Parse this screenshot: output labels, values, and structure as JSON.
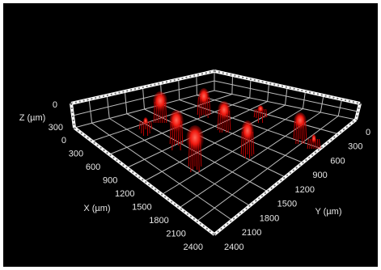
{
  "z_axis": {
    "label": "Z (µm)",
    "ticks": [
      "0",
      "300"
    ]
  },
  "x_axis": {
    "label": "X (µm)",
    "ticks": [
      "0",
      "300",
      "600",
      "900",
      "1200",
      "1500",
      "1800",
      "2100",
      "2400"
    ]
  },
  "y_axis": {
    "label": "Y (µm)",
    "ticks": [
      "0",
      "300",
      "600",
      "900",
      "1200",
      "1500",
      "1800",
      "2100",
      "2400"
    ]
  }
}
